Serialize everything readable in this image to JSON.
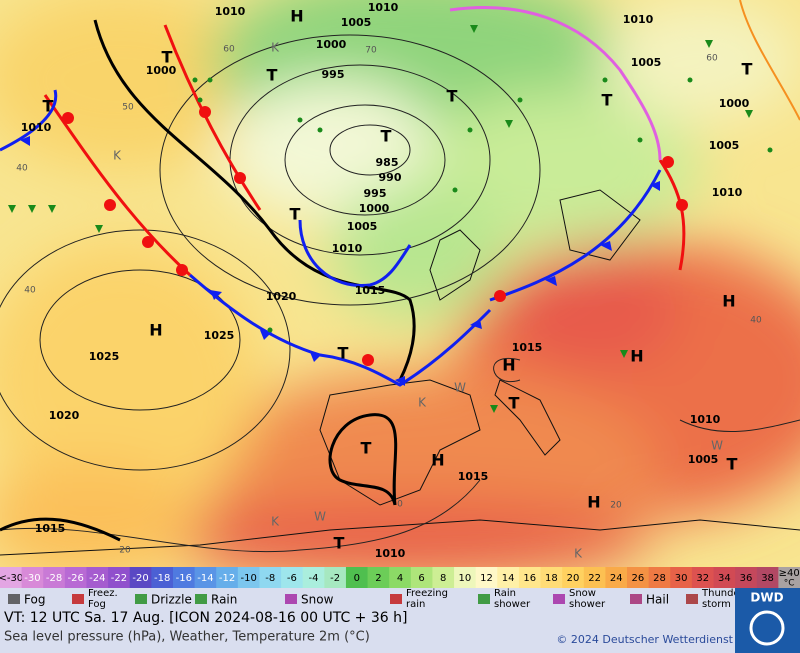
{
  "map": {
    "isobar_labels": [
      "1010",
      "1010",
      "1005",
      "1000",
      "995",
      "1010",
      "1005",
      "1000",
      "1005",
      "1010",
      "985",
      "990",
      "995",
      "1000",
      "1005",
      "1010",
      "1015",
      "1020",
      "1025",
      "1025",
      "1020",
      "1015",
      "1015",
      "1010",
      "1005",
      "1010",
      "1015",
      "1010",
      "1000"
    ],
    "isotherm_labels": [
      "40",
      "40",
      "50",
      "60",
      "70",
      "60",
      "40",
      "20",
      "20",
      "0"
    ],
    "pressure_centers": [
      "H",
      "H",
      "T",
      "T",
      "T",
      "T",
      "T",
      "T",
      "T",
      "T",
      "T",
      "T",
      "H",
      "T",
      "H",
      "T",
      "H",
      "H",
      "H",
      "T"
    ],
    "air_mass_labels": [
      "K",
      "K",
      "K",
      "K",
      "W",
      "W",
      "W",
      "K"
    ]
  },
  "temperature_scale": {
    "unit": "°C",
    "labels": [
      "<-30",
      "-30",
      "-28",
      "-26",
      "-24",
      "-22",
      "-20",
      "-18",
      "-16",
      "-14",
      "-12",
      "-10",
      "-8",
      "-6",
      "-4",
      "-2",
      "0",
      "2",
      "4",
      "6",
      "8",
      "10",
      "12",
      "14",
      "16",
      "18",
      "20",
      "22",
      "24",
      "26",
      "28",
      "30",
      "32",
      "34",
      "36",
      "38",
      "≥40"
    ],
    "colors": [
      "#e3a6e3",
      "#d88ad8",
      "#c97ad6",
      "#b86ad4",
      "#a55ccf",
      "#9050cc",
      "#5a48c4",
      "#4b60d4",
      "#4f7ae0",
      "#5a94e6",
      "#66aeea",
      "#7cc6ee",
      "#8fd8f0",
      "#9ee6ec",
      "#aaeedd",
      "#a6e8c0",
      "#4fbf4f",
      "#6ccd58",
      "#8cda66",
      "#aee57a",
      "#cdee94",
      "#eef7bb",
      "#fff8c8",
      "#fff0a8",
      "#ffe68c",
      "#ffdc76",
      "#ffd160",
      "#fcc052",
      "#f9aa48",
      "#f49244",
      "#ef7a44",
      "#e76248",
      "#dd5250",
      "#d14a54",
      "#c4485c",
      "#b24864",
      "#a9a2a2"
    ]
  },
  "weather_legend": [
    [
      "Fog"
    ],
    [
      "Freez.",
      "Fog"
    ],
    [
      "Drizzle"
    ],
    [
      "Rain"
    ],
    [
      "Snow"
    ],
    [
      "Freezing",
      "rain"
    ],
    [
      "Rain",
      "shower"
    ],
    [
      "Snow",
      "shower"
    ],
    [
      "Hail"
    ],
    [
      "Thunder",
      "storm"
    ]
  ],
  "footer": {
    "valid_time": "VT: 12 UTC Sa.  17 Aug. [ICON 2024-08-16  00 UTC + 36 h]",
    "description": "Sea level pressure (hPa), Weather, Temperature 2m (°C)",
    "copyright": "© 2024 Deutscher Wetterdienst",
    "logo": "DWD"
  }
}
